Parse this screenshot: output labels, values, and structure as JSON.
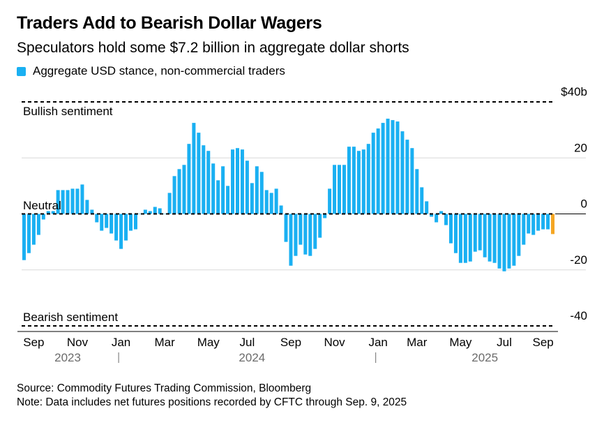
{
  "title": "Traders Add to Bearish Dollar Wagers",
  "subtitle": "Speculators hold some $7.2 billion in aggregate dollar shorts",
  "legend": {
    "label": "Aggregate USD stance, non-commercial traders",
    "color": "#1ab0f2"
  },
  "annotations": {
    "bullish": "Bullish sentiment",
    "neutral": "Neutral",
    "bearish": "Bearish sentiment"
  },
  "footer": {
    "source": "Source: Commodity Futures Trading Commission, Bloomberg",
    "note": "Note: Data includes net futures positions recorded by CFTC through Sep. 9, 2025"
  },
  "colors": {
    "bar": "#1ab0f2",
    "latest": "#f5a623",
    "axis": "#000000",
    "grid": "#d9d9d9"
  },
  "chart_data": {
    "type": "bar",
    "ylim": [
      -40,
      40
    ],
    "y_ticks": [
      {
        "value": 40,
        "label": "$40b"
      },
      {
        "value": 20,
        "label": "20"
      },
      {
        "value": 0,
        "label": "0"
      },
      {
        "value": -20,
        "label": "-20"
      },
      {
        "value": -40,
        "label": "-40"
      }
    ],
    "x_ticks": [
      {
        "index": 2,
        "label": "Sep"
      },
      {
        "index": 11,
        "label": "Nov"
      },
      {
        "index": 20,
        "label": "Jan"
      },
      {
        "index": 29,
        "label": "Mar"
      },
      {
        "index": 38,
        "label": "May"
      },
      {
        "index": 46,
        "label": "Jul"
      },
      {
        "index": 55,
        "label": "Sep"
      },
      {
        "index": 64,
        "label": "Nov"
      },
      {
        "index": 73,
        "label": "Jan"
      },
      {
        "index": 81,
        "label": "Mar"
      },
      {
        "index": 90,
        "label": "May"
      },
      {
        "index": 99,
        "label": "Jul"
      },
      {
        "index": 107,
        "label": "Sep"
      }
    ],
    "years": [
      {
        "index": 9,
        "label": "2023"
      },
      {
        "index": 47,
        "label": "2024"
      },
      {
        "index": 95,
        "label": "2025"
      }
    ],
    "year_separators": [
      20,
      73
    ],
    "series": [
      {
        "values": [
          -16.5,
          -14,
          -11,
          -7.5,
          -2,
          1,
          1,
          8.5,
          8.5,
          8.5,
          9,
          9,
          10.5,
          5,
          1.5,
          -3,
          -6,
          -5,
          -7,
          -9.5,
          -12.5,
          -9.5,
          -6,
          -5.5,
          0,
          1.5,
          1,
          2.5,
          2,
          0,
          7.5,
          13.5,
          16,
          17.5,
          25,
          32.5,
          29,
          24.5,
          22.5,
          18,
          12,
          17,
          10,
          23,
          23.5,
          23,
          19,
          11,
          17,
          15,
          8.5,
          7.5,
          9,
          3,
          -10,
          -18.5,
          -15,
          -11,
          -14.5,
          -15,
          -12.5,
          -8.5,
          -1.5,
          9,
          17.5,
          17.5,
          17.5,
          24,
          24,
          22.5,
          23,
          25,
          29,
          30.5,
          32.5,
          34,
          33.5,
          33,
          29.5,
          26.5,
          23.5,
          16,
          9.5,
          4.5,
          -1,
          -3,
          1,
          -4,
          -10.5,
          -14,
          -17.5,
          -17.5,
          -17,
          -13.5,
          -13,
          -15.5,
          -17,
          -17.5,
          -19.5,
          -20.5,
          -19.5,
          -18.5,
          -15,
          -11,
          -7,
          -7.5,
          -6,
          -5.5,
          -5.5,
          -7.2
        ]
      }
    ]
  }
}
